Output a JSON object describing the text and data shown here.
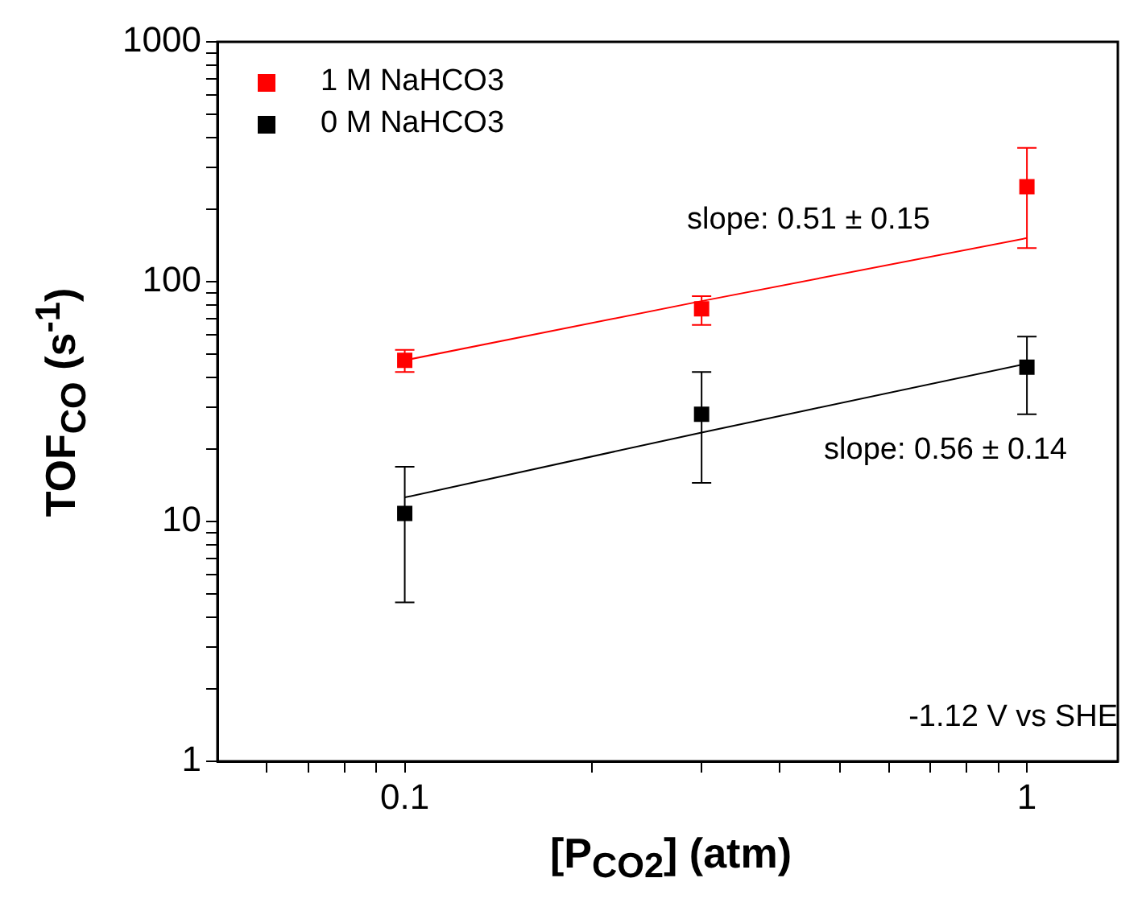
{
  "chart_data": {
    "type": "scatter",
    "xlabel": "[P$_{CO2}$] (atm)",
    "ylabel": "TOF$_{CO}$ (s$^{-1}$)",
    "log": "xy",
    "x": [
      0.1,
      0.3,
      1
    ],
    "series": [
      {
        "name": "1 M NaHCO3",
        "color": "#ff0000",
        "values": [
          47,
          77,
          249
        ],
        "errors": [
          [
            42,
            52
          ],
          [
            66,
            87
          ],
          [
            138,
            361
          ]
        ],
        "marker": "square"
      },
      {
        "name": "0 M NaHCO3",
        "color": "#000000",
        "values": [
          10.8,
          28,
          44
        ],
        "errors": [
          [
            4.6,
            16.9
          ],
          [
            14.5,
            42
          ],
          [
            28,
            59
          ]
        ],
        "marker": "square"
      },
      {
        "type": "line",
        "color": "#ff0000",
        "values": [
          47,
          83,
          152
        ],
        "marker": "none"
      },
      {
        "type": "line",
        "color": "#000000",
        "values": [
          12.6,
          23.5,
          45.5
        ],
        "marker": "none"
      }
    ],
    "xlim": [
      0.05,
      1.4
    ],
    "xticks": [
      {
        "value": 0.06,
        "label": null
      },
      {
        "value": 0.07,
        "label": null
      },
      {
        "value": 0.08,
        "label": null
      },
      {
        "value": 0.09,
        "label": null
      },
      0.1,
      {
        "value": 0.2,
        "label": null
      },
      {
        "value": 0.3,
        "label": null
      },
      {
        "value": 0.4,
        "label": null
      },
      {
        "value": 0.5,
        "label": null
      },
      {
        "value": 0.6,
        "label": null
      },
      {
        "value": 0.7,
        "label": null
      },
      {
        "value": 0.8,
        "label": null
      },
      {
        "value": 0.9,
        "label": null
      },
      1
    ],
    "ylim": [
      1,
      1000
    ],
    "yticks": [
      1,
      {
        "value": 2,
        "label": null
      },
      {
        "value": 3,
        "label": null
      },
      {
        "value": 4,
        "label": null
      },
      {
        "value": 5,
        "label": null
      },
      {
        "value": 6,
        "label": null
      },
      {
        "value": 7,
        "label": null
      },
      {
        "value": 8,
        "label": null
      },
      {
        "value": 9,
        "label": null
      },
      10,
      {
        "value": 20,
        "label": null
      },
      {
        "value": 30,
        "label": null
      },
      {
        "value": 40,
        "label": null
      },
      {
        "value": 50,
        "label": null
      },
      {
        "value": 60,
        "label": null
      },
      {
        "value": 70,
        "label": null
      },
      {
        "value": 80,
        "label": null
      },
      {
        "value": 90,
        "label": null
      },
      100,
      {
        "value": 200,
        "label": null
      },
      {
        "value": 300,
        "label": null
      },
      {
        "value": 400,
        "label": null
      },
      {
        "value": 500,
        "label": null
      },
      {
        "value": 600,
        "label": null
      },
      {
        "value": 700,
        "label": null
      },
      {
        "value": 800,
        "label": null
      },
      {
        "value": 900,
        "label": null
      },
      1000
    ],
    "grid": false,
    "legend": "top left",
    "annotations": [
      "slope: 0.51 ± 0.15",
      "slope: 0.56 ± 0.14",
      "-1.12 V vs SHE"
    ]
  }
}
